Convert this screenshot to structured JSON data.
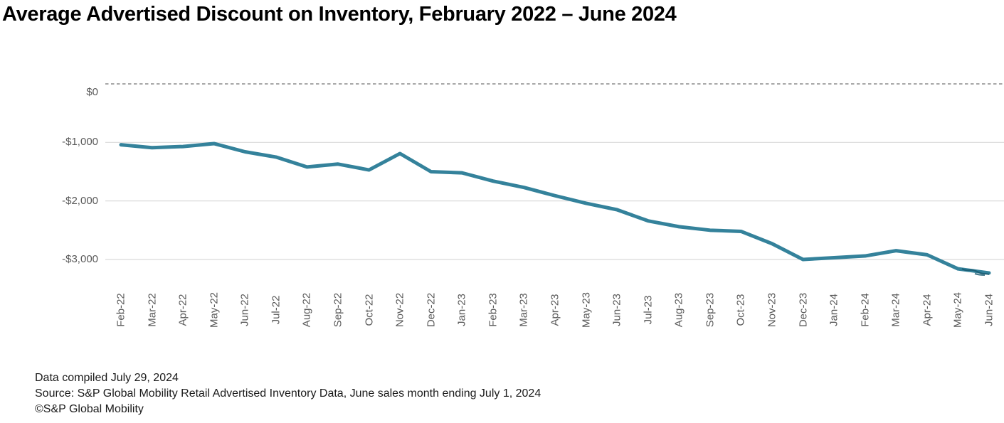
{
  "title": "Average Advertised Discount on Inventory, February 2022 – June 2024",
  "footer": {
    "compiled": "Data compiled July 29, 2024",
    "source": "Source: S&P Global Mobility Retail Advertised Inventory Data, June sales month ending July 1, 2024",
    "copyright": "©S&P Global Mobility"
  },
  "chart_data": {
    "type": "line",
    "title": "Average Advertised Discount on Inventory, February 2022 – June 2024",
    "x": [
      "Feb-22",
      "Mar-22",
      "Apr-22",
      "May-22",
      "Jun-22",
      "Jul-22",
      "Aug-22",
      "Sep-22",
      "Oct-22",
      "Nov-22",
      "Dec-22",
      "Jan-23",
      "Feb-23",
      "Mar-23",
      "Apr-23",
      "May-23",
      "Jun-23",
      "Jul-23",
      "Aug-23",
      "Sep-23",
      "Oct-23",
      "Nov-23",
      "Dec-23",
      "Jan-24",
      "Feb-24",
      "Mar-24",
      "Apr-24",
      "May-24",
      "Jun-24"
    ],
    "values": [
      -1040,
      -1090,
      -1070,
      -1020,
      -1160,
      -1250,
      -1420,
      -1370,
      -1470,
      -1190,
      -1500,
      -1520,
      -1660,
      -1770,
      -1910,
      -2040,
      -2150,
      -2340,
      -2440,
      -2500,
      -2520,
      -2730,
      -3000,
      -2970,
      -2940,
      -2850,
      -2920,
      -3160,
      -3230
    ],
    "xlabel": "",
    "ylabel": "",
    "ylim": [
      -3500,
      0
    ],
    "yticks": {
      "values": [
        0,
        -1000,
        -2000,
        -3000
      ],
      "labels": [
        "$0",
        "-$1,000",
        "-$2,000",
        "-$3,000"
      ]
    },
    "grid": "horizontal",
    "zero_line_style": "dashed",
    "legend": "none",
    "line_color": "#34829b"
  },
  "colors": {
    "line": "#34829b",
    "line_end_smudge": "#17586e",
    "grid": "#d9d9d9",
    "zero_dash": "#8a8a8a",
    "axis_text": "#595959",
    "title_text": "#000000",
    "footer_text": "#1a1a1a"
  }
}
